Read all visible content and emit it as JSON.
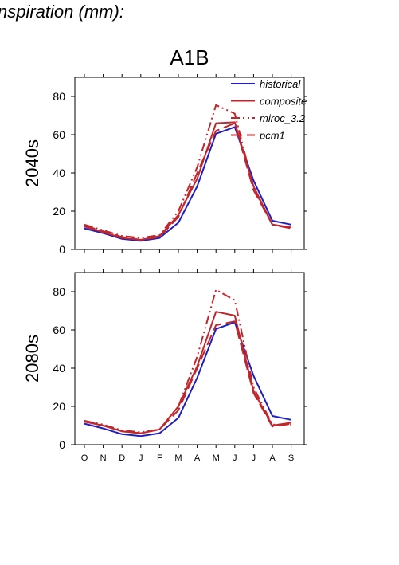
{
  "page": {
    "title": "nspiration (mm):"
  },
  "chart_data": {
    "type": "line",
    "title": "A1B",
    "x": [
      "O",
      "N",
      "D",
      "J",
      "F",
      "M",
      "A",
      "M",
      "J",
      "J",
      "A",
      "S"
    ],
    "ylim": [
      0,
      90
    ],
    "yticks": [
      0,
      20,
      40,
      60,
      80
    ],
    "grid": false,
    "legend_position": "top-right",
    "legend": [
      "historical",
      "composite",
      "miroc_3.2",
      "pcm1"
    ],
    "colors": {
      "historical": "#1f1fbf",
      "composite": "#c0272d",
      "miroc_3.2": "#c0272d",
      "pcm1": "#c0272d"
    },
    "panels": [
      {
        "ylabel": "2040s",
        "series": [
          {
            "name": "historical",
            "values": [
              11,
              8.5,
              5.5,
              4.5,
              6,
              14,
              33,
              60.5,
              64,
              36,
              15,
              13
            ]
          },
          {
            "name": "composite",
            "values": [
              12,
              9,
              6,
              5,
              7,
              18,
              37,
              66,
              66.5,
              33,
              13,
              11.5
            ]
          },
          {
            "name": "miroc_3.2",
            "values": [
              13,
              10,
              7,
              6,
              7.5,
              20,
              43,
              75.5,
              71,
              32,
              13,
              11
            ]
          },
          {
            "name": "pcm1",
            "values": [
              12.5,
              9.5,
              6.5,
              5,
              6.5,
              17,
              40,
              62,
              66,
              31,
              13,
              11
            ]
          }
        ]
      },
      {
        "ylabel": "2080s",
        "series": [
          {
            "name": "historical",
            "values": [
              11,
              8.5,
              5.5,
              4.5,
              6,
              14,
              35,
              60.5,
              64,
              36,
              15,
              13
            ]
          },
          {
            "name": "composite",
            "values": [
              12,
              10,
              7,
              6,
              8,
              20,
              41,
              69.5,
              67.5,
              28,
              10,
              11.5
            ]
          },
          {
            "name": "miroc_3.2",
            "values": [
              12.5,
              10.5,
              7.5,
              6.5,
              8,
              20,
              46,
              81,
              75.5,
              30,
              10.5,
              10.5
            ]
          },
          {
            "name": "pcm1",
            "values": [
              12.5,
              10,
              7,
              6,
              8,
              18,
              40,
              62.5,
              64.5,
              27,
              9.5,
              11
            ]
          }
        ]
      }
    ]
  }
}
